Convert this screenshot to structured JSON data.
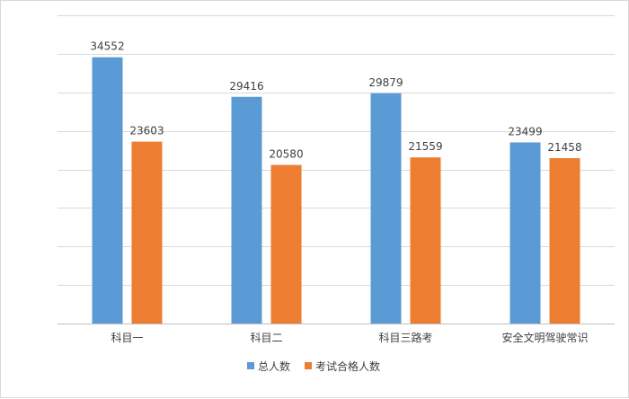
{
  "chart_data": {
    "type": "bar",
    "categories": [
      "科目一",
      "科目二",
      "科目三路考",
      "安全文明驾驶常识"
    ],
    "series": [
      {
        "name": "总人数",
        "values": [
          34552,
          29416,
          29879,
          23499
        ],
        "color": "#5b9bd5"
      },
      {
        "name": "考试合格人数",
        "values": [
          23603,
          20580,
          21559,
          21458
        ],
        "color": "#ed7d31"
      }
    ],
    "ylim": [
      0,
      40000
    ],
    "grid": true,
    "legend": "bottom",
    "data_labels": true
  }
}
